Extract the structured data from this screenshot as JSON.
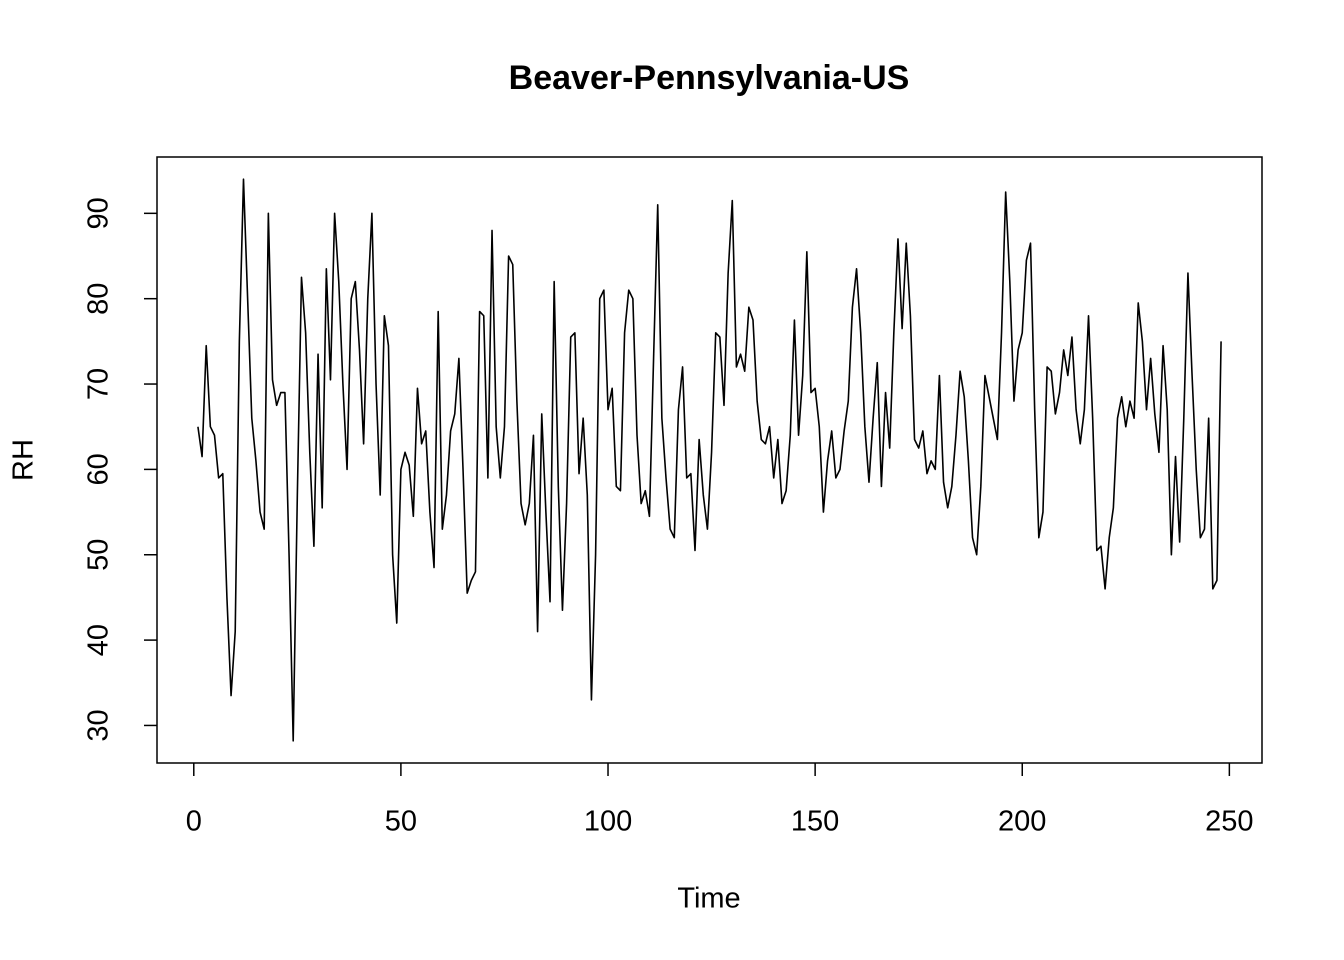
{
  "chart_data": {
    "type": "line",
    "title": "Beaver-Pennsylvania-US",
    "x_label": "Time",
    "y_label": "RH",
    "color": "#000000",
    "x": [
      1,
      2,
      3,
      4,
      5,
      6,
      7,
      8,
      9,
      10,
      11,
      12,
      13,
      14,
      15,
      16,
      17,
      18,
      19,
      20,
      21,
      22,
      23,
      24,
      25,
      26,
      27,
      28,
      29,
      30,
      31,
      32,
      33,
      34,
      35,
      36,
      37,
      38,
      39,
      40,
      41,
      42,
      43,
      44,
      45,
      46,
      47,
      48,
      49,
      50,
      51,
      52,
      53,
      54,
      55,
      56,
      57,
      58,
      59,
      60,
      61,
      62,
      63,
      64,
      65,
      66,
      67,
      68,
      69,
      70,
      71,
      72,
      73,
      74,
      75,
      76,
      77,
      78,
      79,
      80,
      81,
      82,
      83,
      84,
      85,
      86,
      87,
      88,
      89,
      90,
      91,
      92,
      93,
      94,
      95,
      96,
      97,
      98,
      99,
      100,
      101,
      102,
      103,
      104,
      105,
      106,
      107,
      108,
      109,
      110,
      111,
      112,
      113,
      114,
      115,
      116,
      117,
      118,
      119,
      120,
      121,
      122,
      123,
      124,
      125,
      126,
      127,
      128,
      129,
      130,
      131,
      132,
      133,
      134,
      135,
      136,
      137,
      138,
      139,
      140,
      141,
      142,
      143,
      144,
      145,
      146,
      147,
      148,
      149,
      150,
      151,
      152,
      153,
      154,
      155,
      156,
      157,
      158,
      159,
      160,
      161,
      162,
      163,
      164,
      165,
      166,
      167,
      168,
      169,
      170,
      171,
      172,
      173,
      174,
      175,
      176,
      177,
      178,
      179,
      180,
      181,
      182,
      183,
      184,
      185,
      186,
      187,
      188,
      189,
      190,
      191,
      192,
      193,
      194,
      195,
      196,
      197,
      198,
      199,
      200,
      201,
      202,
      203,
      204,
      205,
      206,
      207,
      208,
      209,
      210,
      211,
      212,
      213,
      214,
      215,
      216,
      217,
      218,
      219,
      220,
      221,
      222,
      223,
      224,
      225,
      226,
      227,
      228,
      229,
      230,
      231,
      232,
      233,
      234,
      235,
      236,
      237,
      238,
      239,
      240,
      241,
      242,
      243,
      244,
      245,
      246,
      247,
      248
    ],
    "values": [
      65,
      61.5,
      74.5,
      65,
      64,
      59,
      59.5,
      45,
      33.5,
      41,
      75,
      94,
      80,
      66,
      61,
      55,
      53,
      90,
      70.5,
      67.5,
      69,
      69,
      50,
      28.2,
      57,
      82.5,
      76,
      62,
      51,
      73.5,
      55.5,
      83.5,
      70.5,
      90,
      82,
      70,
      60,
      80,
      82,
      74,
      63,
      80,
      90,
      70,
      57,
      78,
      74.5,
      50,
      42,
      60,
      62,
      60.5,
      54.5,
      69.5,
      63,
      64.5,
      55,
      48.5,
      78.5,
      53,
      57,
      64.5,
      66.5,
      73,
      60,
      45.5,
      47,
      48,
      78.5,
      78,
      59,
      88,
      65,
      59,
      65,
      85,
      84,
      68,
      56,
      53.5,
      56,
      64,
      41,
      66.5,
      55,
      44.5,
      82,
      58,
      43.5,
      56,
      75.5,
      76,
      59.5,
      66,
      57,
      33,
      50,
      80,
      81,
      67,
      69.5,
      58,
      57.5,
      76,
      81,
      80,
      64,
      56,
      57.5,
      54.5,
      73,
      91,
      66,
      59,
      53,
      52,
      67,
      72,
      59,
      59.5,
      50.5,
      63.5,
      57,
      53,
      62,
      76,
      75.5,
      67.5,
      83,
      91.5,
      72,
      73.5,
      71.5,
      79,
      77.5,
      68,
      63.5,
      63,
      65,
      59,
      63.5,
      56,
      57.5,
      64,
      77.5,
      64,
      71,
      85.5,
      69,
      69.5,
      65,
      55,
      61,
      64.5,
      59,
      60,
      64.5,
      68,
      79,
      83.5,
      76,
      65,
      58.5,
      66,
      72.5,
      58,
      69,
      62.5,
      76,
      87,
      76.5,
      86.5,
      78,
      63.5,
      62.5,
      64.5,
      59.5,
      61,
      60,
      71,
      58.5,
      55.5,
      58,
      64,
      71.5,
      68.5,
      61,
      52,
      50,
      58,
      71,
      68.5,
      66,
      63.5,
      76,
      92.5,
      82,
      68,
      74,
      76,
      84.5,
      86.5,
      67,
      52,
      55,
      72,
      71.5,
      66.5,
      69,
      74,
      71,
      75.5,
      67,
      63,
      67,
      78,
      66,
      50.5,
      51,
      46,
      52,
      55.5,
      66,
      68.5,
      65,
      68,
      66,
      79.5,
      75,
      67,
      73,
      66.5,
      62,
      74.5,
      67,
      50,
      61.5,
      51.5,
      66,
      83,
      71,
      60,
      52,
      53,
      66,
      46,
      47,
      75
    ],
    "xlim": [
      -8.88,
      257.88
    ],
    "ylim": [
      25.6,
      96.6
    ],
    "xticks": [
      0,
      50,
      100,
      150,
      200,
      250
    ],
    "yticks": [
      30,
      40,
      50,
      60,
      70,
      80,
      90
    ],
    "grid": false
  }
}
